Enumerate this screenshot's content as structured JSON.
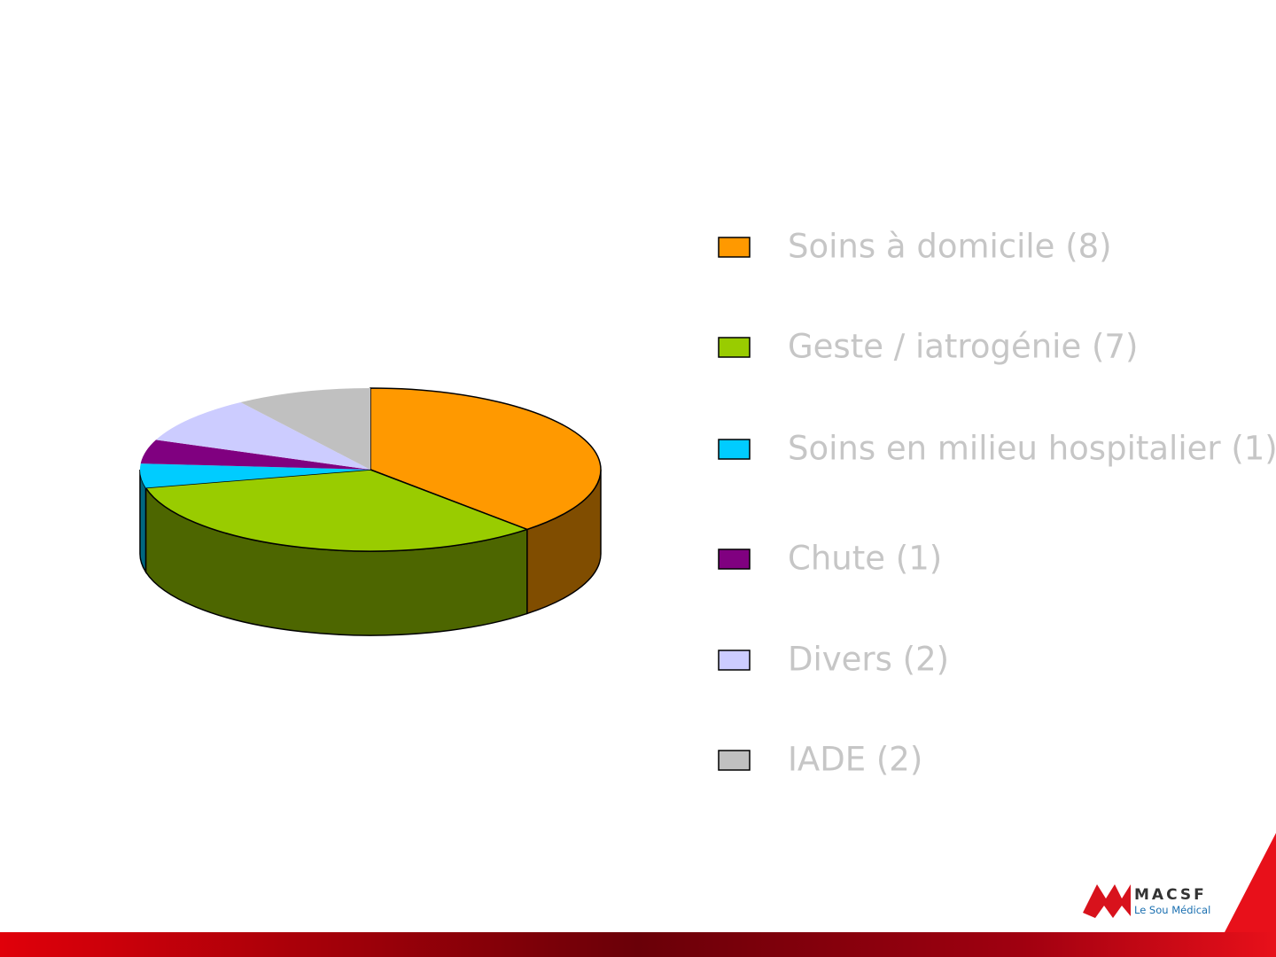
{
  "chart_data": {
    "type": "pie",
    "categories": [
      "Soins à domicile (8)",
      "Geste / iatrogénie (7)",
      "Soins en milieu hospitalier (1)",
      "Chute (1)",
      "Divers (2)",
      "IADE (2)"
    ],
    "values": [
      8,
      7,
      1,
      1,
      2,
      2
    ],
    "colors": [
      "#ff9900",
      "#99cc00",
      "#00ccff",
      "#800080",
      "#ccccff",
      "#c0c0c0"
    ],
    "legend": "right"
  },
  "logo": {
    "name": "MACSF",
    "tagline": "Le Sou Médical"
  }
}
